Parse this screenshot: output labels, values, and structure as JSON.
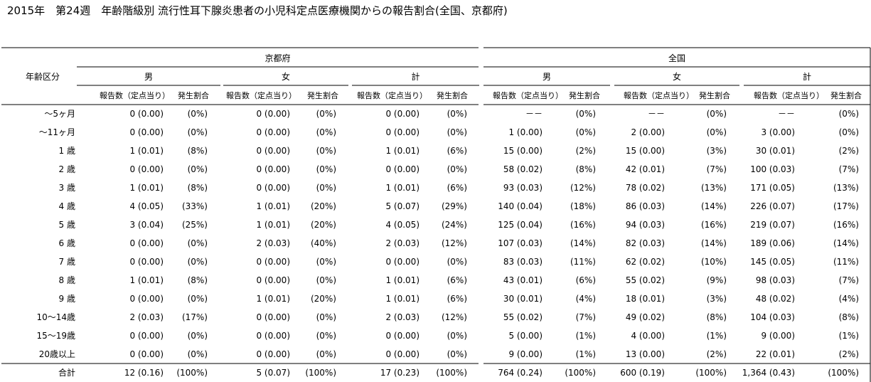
{
  "title": "2015年　第24週　年齢階級別 流行性耳下腺炎患者の小児科定点医療機関からの報告割合(全国、京都府)",
  "table": {
    "age_header": "年齢区分",
    "regions": [
      "京都府",
      "全国"
    ],
    "sexes": [
      "男",
      "女",
      "計"
    ],
    "sub_headers": [
      "報告数（定点当り）",
      "発生割合"
    ],
    "rows": [
      {
        "age": "～5ヶ月",
        "cells": [
          "0 (0.00)",
          "(0%)",
          "0 (0.00)",
          "(0%)",
          "0 (0.00)",
          "(0%)",
          "－－",
          "(0%)",
          "－－",
          "(0%)",
          "－－",
          "(0%)"
        ]
      },
      {
        "age": "～11ヶ月",
        "cells": [
          "0 (0.00)",
          "(0%)",
          "0 (0.00)",
          "(0%)",
          "0 (0.00)",
          "(0%)",
          "1 (0.00)",
          "(0%)",
          "2 (0.00)",
          "(0%)",
          "3 (0.00)",
          "(0%)"
        ]
      },
      {
        "age": "1 歳",
        "cells": [
          "1 (0.01)",
          "(8%)",
          "0 (0.00)",
          "(0%)",
          "1 (0.01)",
          "(6%)",
          "15 (0.00)",
          "(2%)",
          "15 (0.00)",
          "(3%)",
          "30 (0.01)",
          "(2%)"
        ]
      },
      {
        "age": "2 歳",
        "cells": [
          "0 (0.00)",
          "(0%)",
          "0 (0.00)",
          "(0%)",
          "0 (0.00)",
          "(0%)",
          "58 (0.02)",
          "(8%)",
          "42 (0.01)",
          "(7%)",
          "100 (0.03)",
          "(7%)"
        ]
      },
      {
        "age": "3 歳",
        "cells": [
          "1 (0.01)",
          "(8%)",
          "0 (0.00)",
          "(0%)",
          "1 (0.01)",
          "(6%)",
          "93 (0.03)",
          "(12%)",
          "78 (0.02)",
          "(13%)",
          "171 (0.05)",
          "(13%)"
        ]
      },
      {
        "age": "4 歳",
        "cells": [
          "4 (0.05)",
          "(33%)",
          "1 (0.01)",
          "(20%)",
          "5 (0.07)",
          "(29%)",
          "140 (0.04)",
          "(18%)",
          "86 (0.03)",
          "(14%)",
          "226 (0.07)",
          "(17%)"
        ]
      },
      {
        "age": "5 歳",
        "cells": [
          "3 (0.04)",
          "(25%)",
          "1 (0.01)",
          "(20%)",
          "4 (0.05)",
          "(24%)",
          "125 (0.04)",
          "(16%)",
          "94 (0.03)",
          "(16%)",
          "219 (0.07)",
          "(16%)"
        ]
      },
      {
        "age": "6 歳",
        "cells": [
          "0 (0.00)",
          "(0%)",
          "2 (0.03)",
          "(40%)",
          "2 (0.03)",
          "(12%)",
          "107 (0.03)",
          "(14%)",
          "82 (0.03)",
          "(14%)",
          "189 (0.06)",
          "(14%)"
        ]
      },
      {
        "age": "7 歳",
        "cells": [
          "0 (0.00)",
          "(0%)",
          "0 (0.00)",
          "(0%)",
          "0 (0.00)",
          "(0%)",
          "83 (0.03)",
          "(11%)",
          "62 (0.02)",
          "(10%)",
          "145 (0.05)",
          "(11%)"
        ]
      },
      {
        "age": "8 歳",
        "cells": [
          "1 (0.01)",
          "(8%)",
          "0 (0.00)",
          "(0%)",
          "1 (0.01)",
          "(6%)",
          "43 (0.01)",
          "(6%)",
          "55 (0.02)",
          "(9%)",
          "98 (0.03)",
          "(7%)"
        ]
      },
      {
        "age": "9 歳",
        "cells": [
          "0 (0.00)",
          "(0%)",
          "1 (0.01)",
          "(20%)",
          "1 (0.01)",
          "(6%)",
          "30 (0.01)",
          "(4%)",
          "18 (0.01)",
          "(3%)",
          "48 (0.02)",
          "(4%)"
        ]
      },
      {
        "age": "10～14歳",
        "cells": [
          "2 (0.03)",
          "(17%)",
          "0 (0.00)",
          "(0%)",
          "2 (0.03)",
          "(12%)",
          "55 (0.02)",
          "(7%)",
          "49 (0.02)",
          "(8%)",
          "104 (0.03)",
          "(8%)"
        ]
      },
      {
        "age": "15～19歳",
        "cells": [
          "0 (0.00)",
          "(0%)",
          "0 (0.00)",
          "(0%)",
          "0 (0.00)",
          "(0%)",
          "5 (0.00)",
          "(1%)",
          "4 (0.00)",
          "(1%)",
          "9 (0.00)",
          "(1%)"
        ]
      },
      {
        "age": "20歳以上",
        "cells": [
          "0 (0.00)",
          "(0%)",
          "0 (0.00)",
          "(0%)",
          "0 (0.00)",
          "(0%)",
          "9 (0.00)",
          "(1%)",
          "13 (0.00)",
          "(2%)",
          "22 (0.01)",
          "(2%)"
        ]
      }
    ],
    "total": {
      "age": "合計",
      "cells": [
        "12 (0.16)",
        "(100%)",
        "5 (0.07)",
        "(100%)",
        "17 (0.23)",
        "(100%)",
        "764 (0.24)",
        "(100%)",
        "600 (0.19)",
        "(100%)",
        "1,364 (0.43)",
        "(100%)"
      ]
    }
  }
}
